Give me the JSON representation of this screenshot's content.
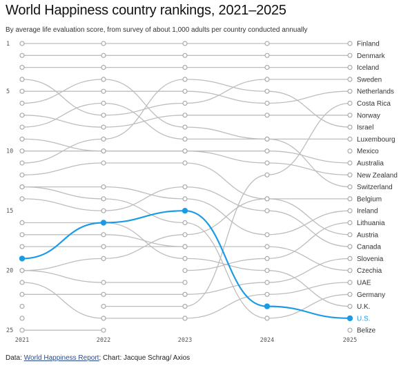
{
  "header": {
    "title": "World Happiness country rankings, 2021–2025",
    "subtitle": "By average life evaluation score, from survey of about 1,000 adults per country conducted annually"
  },
  "footer": {
    "prefix": "Data: ",
    "source_link": "World Happiness Report",
    "suffix": "; Chart: Jacque Schrag/ Axios"
  },
  "colors": {
    "line": "#bdbdbd",
    "highlight": "#1b9be6",
    "dot_fill": "#ffffff"
  },
  "chart_data": {
    "type": "line",
    "subtype": "bump",
    "x": [
      "2021",
      "2022",
      "2023",
      "2024",
      "2025"
    ],
    "y_tick_labels": [
      "1",
      "5",
      "10",
      "15",
      "20",
      "25"
    ],
    "y_reversed": true,
    "ylim": [
      1,
      25
    ],
    "highlight_series": "U.S.",
    "grid": false,
    "labels_position": "right",
    "series": [
      {
        "name": "Finland",
        "ranks": [
          1,
          1,
          1,
          1,
          1
        ]
      },
      {
        "name": "Denmark",
        "ranks": [
          2,
          2,
          2,
          2,
          2
        ]
      },
      {
        "name": "Iceland",
        "ranks": [
          3,
          3,
          3,
          3,
          3
        ]
      },
      {
        "name": "Sweden",
        "ranks": [
          4,
          7,
          6,
          4,
          4
        ]
      },
      {
        "name": "Netherlands",
        "ranks": [
          5,
          5,
          5,
          6,
          5
        ]
      },
      {
        "name": "Costa Rica",
        "ranks": [
          null,
          23,
          23,
          12,
          6
        ]
      },
      {
        "name": "Norway",
        "ranks": [
          7,
          8,
          7,
          7,
          7
        ]
      },
      {
        "name": "Israel",
        "ranks": [
          11,
          9,
          4,
          5,
          8
        ]
      },
      {
        "name": "Luxembourg",
        "ranks": [
          8,
          6,
          9,
          9,
          9
        ]
      },
      {
        "name": "Mexico",
        "ranks": [
          null,
          null,
          null,
          null,
          10
        ]
      },
      {
        "name": "Australia",
        "ranks": [
          10,
          10,
          10,
          10,
          11
        ]
      },
      {
        "name": "New Zealand",
        "ranks": [
          9,
          10,
          10,
          11,
          12
        ]
      },
      {
        "name": "Switzerland",
        "ranks": [
          6,
          4,
          8,
          9,
          13
        ]
      },
      {
        "name": "Belgium",
        "ranks": [
          20,
          19,
          17,
          14,
          14
        ]
      },
      {
        "name": "Ireland",
        "ranks": [
          13,
          13,
          14,
          17,
          15
        ]
      },
      {
        "name": "Lithuania",
        "ranks": [
          null,
          null,
          20,
          19,
          16
        ]
      },
      {
        "name": "Austria",
        "ranks": [
          12,
          11,
          11,
          14,
          17
        ]
      },
      {
        "name": "Canada",
        "ranks": [
          14,
          15,
          13,
          15,
          18
        ]
      },
      {
        "name": "Slovenia",
        "ranks": [
          null,
          null,
          22,
          21,
          19
        ]
      },
      {
        "name": "Czechia",
        "ranks": [
          17,
          17,
          18,
          18,
          20
        ]
      },
      {
        "name": "UAE",
        "ranks": [
          21,
          24,
          24,
          22,
          21
        ]
      },
      {
        "name": "Germany",
        "ranks": [
          13,
          14,
          16,
          24,
          22
        ]
      },
      {
        "name": "U.K.",
        "ranks": [
          16,
          16,
          19,
          20,
          23
        ]
      },
      {
        "name": "U.S.",
        "ranks": [
          19,
          16,
          15,
          23,
          24
        ]
      },
      {
        "name": "Belize",
        "ranks": [
          null,
          null,
          null,
          null,
          25
        ]
      },
      {
        "name": "",
        "ranks": [
          20,
          21,
          21,
          null,
          null
        ]
      },
      {
        "name": "",
        "ranks": [
          22,
          22,
          22,
          null,
          null
        ]
      },
      {
        "name": "",
        "ranks": [
          23,
          null,
          null,
          null,
          null
        ]
      },
      {
        "name": "",
        "ranks": [
          24,
          null,
          null,
          null,
          null
        ]
      },
      {
        "name": "",
        "ranks": [
          25,
          25,
          null,
          null,
          null
        ]
      },
      {
        "name": "",
        "ranks": [
          18,
          18,
          18,
          null,
          null
        ]
      }
    ]
  }
}
